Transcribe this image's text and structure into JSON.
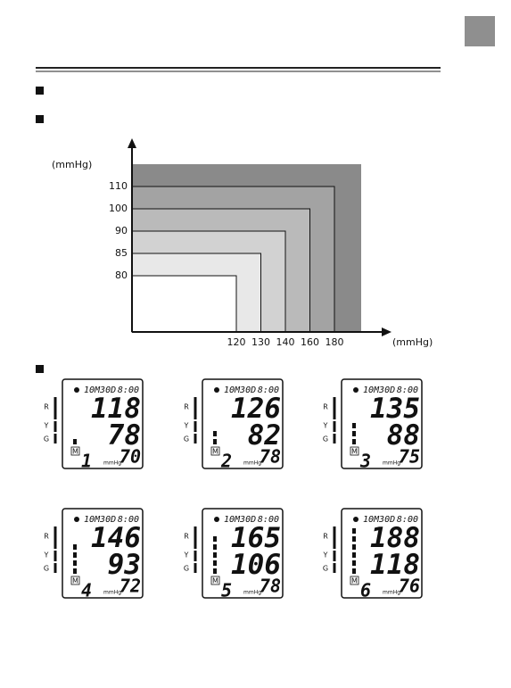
{
  "chart_data": {
    "type": "zones",
    "x": [
      120,
      130,
      140,
      160,
      180
    ],
    "y": [
      80,
      85,
      90,
      100,
      110
    ],
    "x_label": "(mmHg)",
    "y_label": "(mmHg)",
    "zone_colors": [
      "#ffffff",
      "#e8e8e8",
      "#d2d2d2",
      "#bababa",
      "#a3a3a3"
    ],
    "outer_color": "#8a8a8a"
  },
  "level_labels": [
    "R",
    "Y",
    "G"
  ],
  "displays": [
    {
      "date": "10M30D",
      "time": "8:00",
      "systolic": 118,
      "diastolic": 78,
      "pulse": 70,
      "memory_icon": "M",
      "memory": 1,
      "unit": "mmHg",
      "level": 1
    },
    {
      "date": "10M30D",
      "time": "8:00",
      "systolic": 126,
      "diastolic": 82,
      "pulse": 78,
      "memory_icon": "M",
      "memory": 2,
      "unit": "mmHg",
      "level": 2
    },
    {
      "date": "10M30D",
      "time": "8:00",
      "systolic": 135,
      "diastolic": 88,
      "pulse": 75,
      "memory_icon": "M",
      "memory": 3,
      "unit": "mmHg",
      "level": 3
    },
    {
      "date": "10M30D",
      "time": "8:00",
      "systolic": 146,
      "diastolic": 93,
      "pulse": 72,
      "memory_icon": "M",
      "memory": 4,
      "unit": "mmHg",
      "level": 4
    },
    {
      "date": "10M30D",
      "time": "8:00",
      "systolic": 165,
      "diastolic": 106,
      "pulse": 78,
      "memory_icon": "M",
      "memory": 5,
      "unit": "mmHg",
      "level": 5
    },
    {
      "date": "10M30D",
      "time": "8:00",
      "systolic": 188,
      "diastolic": 118,
      "pulse": 76,
      "memory_icon": "M",
      "memory": 6,
      "unit": "mmHg",
      "level": 6
    }
  ]
}
